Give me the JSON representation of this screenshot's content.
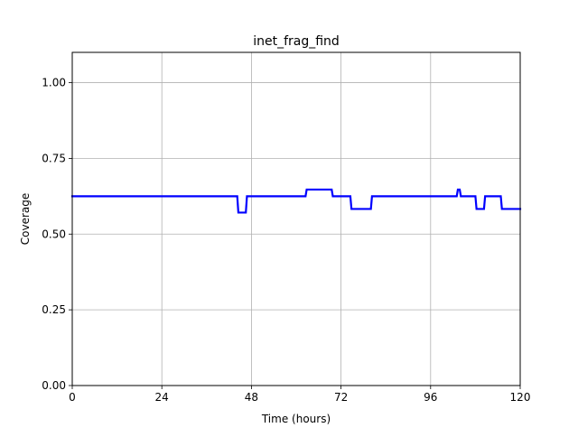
{
  "chart_data": {
    "type": "line",
    "title": "inet_frag_find",
    "xlabel": "Time (hours)",
    "ylabel": "Coverage",
    "xlim": [
      0,
      120
    ],
    "ylim": [
      0,
      1.1
    ],
    "xticks": [
      0,
      24,
      48,
      72,
      96,
      120
    ],
    "xtick_labels": [
      "0",
      "24",
      "48",
      "72",
      "96",
      "120"
    ],
    "yticks": [
      0.0,
      0.25,
      0.5,
      0.75,
      1.0
    ],
    "ytick_labels": [
      "0.00",
      "0.25",
      "0.50",
      "0.75",
      "1.00"
    ],
    "grid": true,
    "series": [
      {
        "color": "#0000ff",
        "x": [
          0,
          44.2,
          44.5,
          46.5,
          46.8,
          62.5,
          62.8,
          69.5,
          69.8,
          74.5,
          74.8,
          80.0,
          80.3,
          103.0,
          103.3,
          103.8,
          104.1,
          108.0,
          108.3,
          110.3,
          110.6,
          114.8,
          115.1,
          120
        ],
        "y": [
          0.625,
          0.625,
          0.571,
          0.571,
          0.625,
          0.625,
          0.647,
          0.647,
          0.625,
          0.625,
          0.583,
          0.583,
          0.625,
          0.625,
          0.647,
          0.647,
          0.625,
          0.625,
          0.583,
          0.583,
          0.625,
          0.625,
          0.583,
          0.583
        ]
      }
    ]
  }
}
